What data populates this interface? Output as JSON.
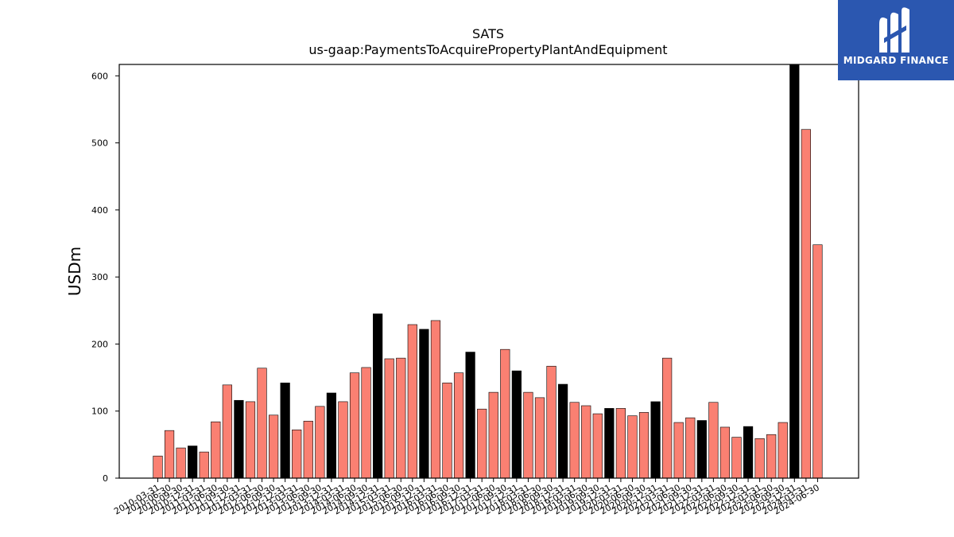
{
  "logo": {
    "text": "MIDGARD FINANCE",
    "background": "#2b57b0",
    "icon": "midgard-m-logo-icon"
  },
  "colors": {
    "highlight": "#000000",
    "default": "#fa8072",
    "edge": "#000000"
  },
  "chart_data": {
    "type": "bar",
    "title": "SATS",
    "subtitle": "us-gaap:PaymentsToAcquirePropertyPlantAndEquipment",
    "xlabel": "",
    "ylabel": "USDm",
    "ylim": [
      0,
      617
    ],
    "yticks": [
      0,
      100,
      200,
      300,
      400,
      500,
      600
    ],
    "grid": false,
    "legend": "none",
    "categories": [
      "2010-03-31",
      "2010-06-30",
      "2010-09-30",
      "2010-12-31",
      "2011-03-31",
      "2011-06-30",
      "2011-09-30",
      "2011-12-31",
      "2012-03-31",
      "2012-06-30",
      "2012-09-30",
      "2012-12-31",
      "2013-03-31",
      "2013-06-30",
      "2013-09-30",
      "2013-12-31",
      "2014-03-31",
      "2014-06-30",
      "2014-09-30",
      "2014-12-31",
      "2015-03-31",
      "2015-06-30",
      "2015-09-30",
      "2015-12-31",
      "2016-03-31",
      "2016-06-30",
      "2016-09-30",
      "2016-12-31",
      "2017-03-31",
      "2017-06-30",
      "2017-09-30",
      "2017-12-31",
      "2018-03-31",
      "2018-06-30",
      "2018-09-30",
      "2018-12-31",
      "2019-03-31",
      "2019-06-30",
      "2019-09-30",
      "2019-12-31",
      "2020-03-31",
      "2020-06-30",
      "2020-09-30",
      "2020-12-31",
      "2021-03-31",
      "2021-06-30",
      "2021-09-30",
      "2021-12-31",
      "2022-03-31",
      "2022-06-30",
      "2022-09-30",
      "2022-12-31",
      "2023-03-31",
      "2023-06-30",
      "2023-09-30",
      "2023-12-31",
      "2024-03-31",
      "2024-06-30"
    ],
    "values": [
      33,
      71,
      45,
      48,
      39,
      84,
      139,
      116,
      114,
      164,
      94,
      142,
      72,
      85,
      107,
      127,
      114,
      157,
      165,
      245,
      178,
      179,
      229,
      222,
      235,
      142,
      157,
      188,
      103,
      128,
      192,
      160,
      128,
      120,
      167,
      140,
      113,
      108,
      96,
      104,
      104,
      93,
      98,
      114,
      179,
      83,
      90,
      86,
      113,
      76,
      61,
      77,
      59,
      65,
      83,
      617,
      520,
      348
    ],
    "highlighted": [
      3,
      7,
      11,
      15,
      19,
      23,
      27,
      31,
      35,
      39,
      43,
      47,
      51,
      55
    ]
  }
}
